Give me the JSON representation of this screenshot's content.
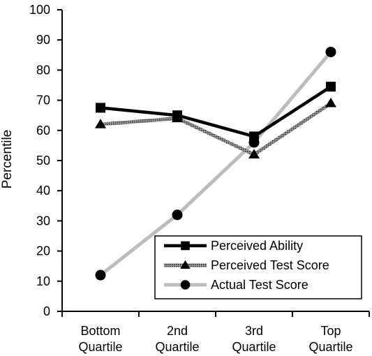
{
  "chart_data": {
    "type": "line",
    "categories": [
      [
        "Bottom",
        "Quartile"
      ],
      [
        "2nd",
        "Quartile"
      ],
      [
        "3rd",
        "Quartile"
      ],
      [
        "Top",
        "Quartile"
      ]
    ],
    "ylabel": "Percentile",
    "xlabel": "",
    "title": "",
    "ylim": [
      0,
      100
    ],
    "yticks": [
      0,
      10,
      20,
      30,
      40,
      50,
      60,
      70,
      80,
      90,
      100
    ],
    "grid": false,
    "legend_position": "bottom-right",
    "series": [
      {
        "name": "Perceived Ability",
        "values": [
          67.5,
          65,
          58,
          74.5
        ],
        "marker": "square",
        "color": "#000000",
        "line_style": "solid-thick"
      },
      {
        "name": "Perceived Test Score",
        "values": [
          62,
          64,
          52,
          69
        ],
        "marker": "triangle",
        "color": "#666666",
        "line_style": "hatched"
      },
      {
        "name": "Actual Test Score",
        "values": [
          12,
          32,
          56,
          86
        ],
        "marker": "circle",
        "color": "#bdbdbd",
        "line_style": "solid-light"
      }
    ]
  }
}
